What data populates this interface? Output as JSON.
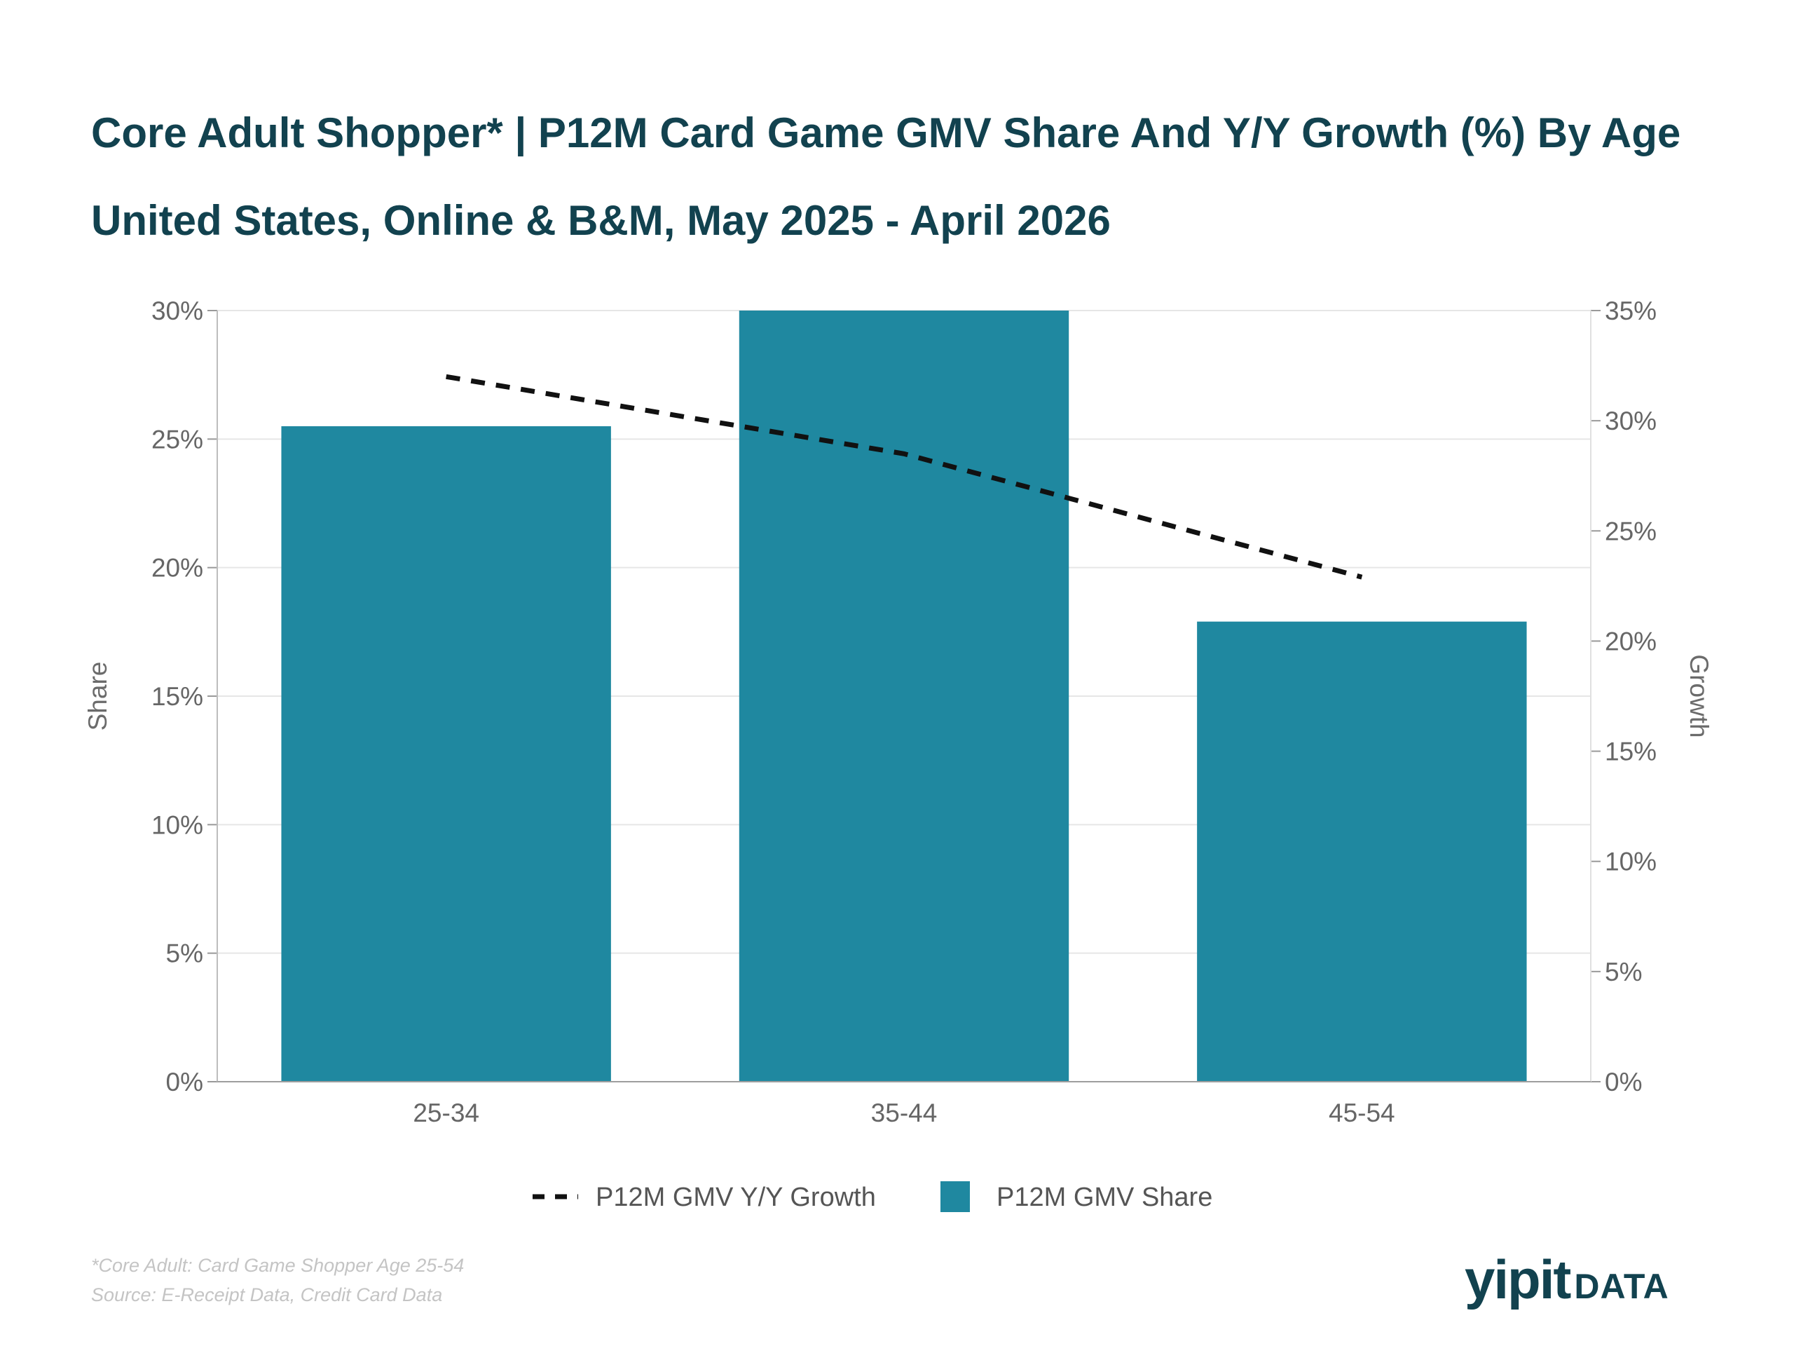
{
  "title": "Core Adult Shopper* | P12M Card Game GMV Share And  Y/Y Growth (%) By Age",
  "subtitle": "United States, Online & B&M, May 2025 - April 2026",
  "footnotes": {
    "definition": "*Core Adult: Card Game Shopper Age 25-54",
    "source": "Source: E-Receipt Data, Credit Card Data"
  },
  "brand": {
    "name": "yipit",
    "suffix": "DATA"
  },
  "colors": {
    "bar": "#1f88a0",
    "line": "#111111",
    "grid": "#e6e6e6",
    "text": "#12424f"
  },
  "chart_data": {
    "type": "bar",
    "categories": [
      "25-34",
      "35-44",
      "45-54"
    ],
    "series": [
      {
        "name": "P12M GMV Share",
        "type": "bar",
        "axis": "left",
        "values": [
          25.5,
          30.0,
          17.9
        ]
      },
      {
        "name": "P12M GMV Y/Y Growth",
        "type": "line",
        "style": "dashed",
        "axis": "right",
        "values": [
          32.0,
          28.5,
          22.9
        ]
      }
    ],
    "left_axis": {
      "label": "Share",
      "min": 0,
      "max": 30,
      "ticks": [
        0,
        5,
        10,
        15,
        20,
        25,
        30
      ],
      "tick_labels": [
        "0%",
        "5%",
        "10%",
        "15%",
        "20%",
        "25%",
        "30%"
      ]
    },
    "right_axis": {
      "label": "Growth",
      "min": 0,
      "max": 35,
      "ticks": [
        0,
        5,
        10,
        15,
        20,
        25,
        30,
        35
      ],
      "tick_labels": [
        "0%",
        "5%",
        "10%",
        "15%",
        "20%",
        "25%",
        "30%",
        "35%"
      ]
    },
    "grid": true,
    "legend": {
      "position": "bottom",
      "items": [
        {
          "label": "P12M GMV Y/Y Growth",
          "marker": "dashed-line"
        },
        {
          "label": "P12M GMV Share",
          "marker": "square"
        }
      ]
    }
  }
}
